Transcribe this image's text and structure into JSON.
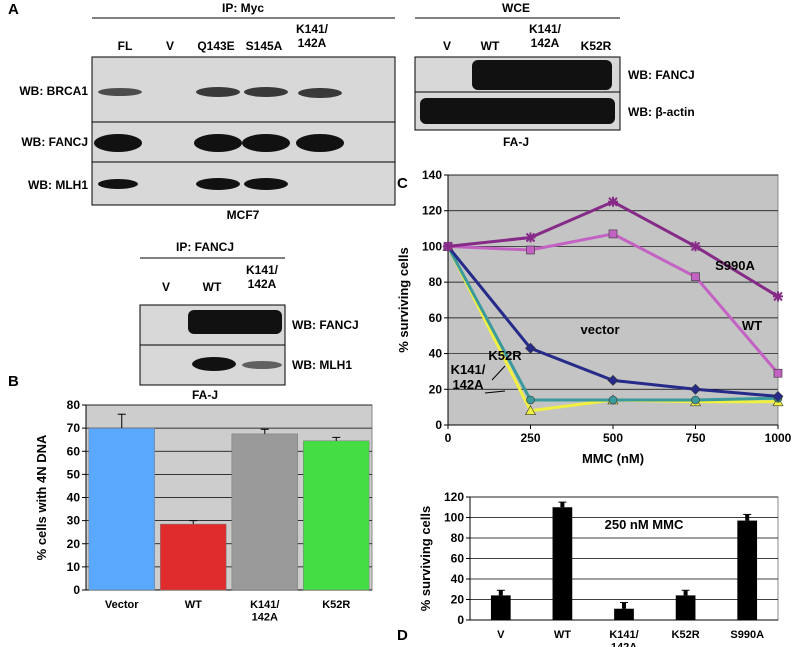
{
  "panel_labels": [
    "A",
    "B",
    "C",
    "D"
  ],
  "blots": [
    {
      "header": "IP: Myc",
      "lanes": [
        "FL",
        "V",
        "Q143E",
        "S145A",
        "K141/\n142A"
      ],
      "rows": [
        "WB: BRCA1",
        "WB: FANCJ",
        "WB: MLH1"
      ],
      "cell": "MCF7"
    },
    {
      "header": "WCE",
      "lanes": [
        "V",
        "WT",
        "K141/\n142A",
        "K52R"
      ],
      "rows": [
        "WB: FANCJ",
        "WB: β-actin"
      ],
      "cell": "FA-J"
    },
    {
      "header": "IP: FANCJ",
      "lanes": [
        "V",
        "WT",
        "K141/\n142A"
      ],
      "rows": [
        "WB: FANCJ",
        "WB: MLH1"
      ],
      "cell": "FA-J"
    }
  ],
  "chart_data": [
    {
      "type": "bar",
      "y_label": "% cells with 4N DNA",
      "categories": [
        "Vector",
        "WT",
        "K141/\n142A",
        "K52R"
      ],
      "values": [
        70,
        28.5,
        67.5,
        64.5
      ],
      "errors": [
        6,
        1.5,
        2,
        1.5
      ],
      "colors": [
        "#5aa8ff",
        "#e02c2c",
        "#9a9a9a",
        "#44dd44"
      ],
      "ylim": [
        0,
        80
      ],
      "yticks": [
        0,
        10,
        20,
        30,
        40,
        50,
        60,
        70,
        80
      ],
      "grid": true,
      "plot_background": "#cdcdcd"
    },
    {
      "type": "line",
      "x_label": "MMC (nM)",
      "y_label": "% surviving cells",
      "x": [
        0,
        250,
        500,
        750,
        1000
      ],
      "xlim": [
        0,
        1000
      ],
      "xticks": [
        0,
        250,
        500,
        750,
        1000
      ],
      "ylim": [
        0,
        140
      ],
      "yticks": [
        0,
        20,
        40,
        60,
        80,
        100,
        120,
        140
      ],
      "grid": true,
      "plot_background": "#c4c4c4",
      "series": [
        {
          "name": "S990A",
          "color": "#862a88",
          "marker": "star",
          "values": [
            100,
            105,
            125,
            100,
            72
          ]
        },
        {
          "name": "WT",
          "color": "#c462c4",
          "marker": "square",
          "values": [
            100,
            98,
            107,
            83,
            29
          ]
        },
        {
          "name": "vector",
          "color": "#262a88",
          "marker": "diamond",
          "values": [
            100,
            43,
            25,
            20,
            16
          ]
        },
        {
          "name": "K52R",
          "color": "#3a9a9c",
          "marker": "circle",
          "values": [
            100,
            14,
            14,
            14,
            15
          ]
        },
        {
          "name": "K141/\n142A",
          "color": "#f0f040",
          "marker": "triangle",
          "values": [
            100,
            8,
            14,
            13,
            13
          ]
        }
      ]
    },
    {
      "type": "bar",
      "y_label": "% surviving cells",
      "annotation": "250 nM MMC",
      "categories": [
        "V",
        "WT",
        "K141/\n142A",
        "K52R",
        "S990A"
      ],
      "values": [
        24,
        110,
        11,
        24,
        97
      ],
      "errors": [
        5,
        5,
        6,
        5,
        6
      ],
      "colors": [
        "#000000",
        "#000000",
        "#000000",
        "#000000",
        "#000000"
      ],
      "ylim": [
        0,
        120
      ],
      "yticks": [
        0,
        20,
        40,
        60,
        80,
        100,
        120
      ],
      "grid": true,
      "plot_background": "#ffffff"
    }
  ]
}
